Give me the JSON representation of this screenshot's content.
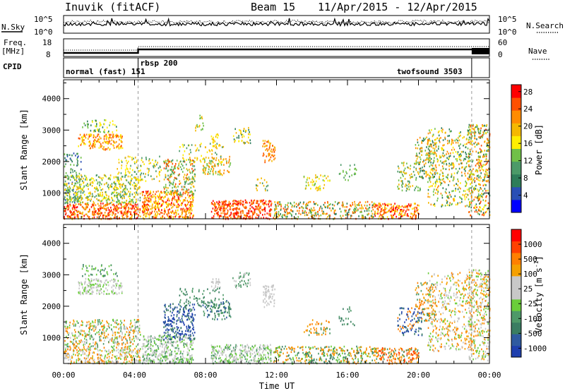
{
  "header": {
    "station": "Inuvik (fitACF)",
    "beam": "Beam 15",
    "date_range": "11/Apr/2015 - 12/Apr/2015"
  },
  "noise_panel": {
    "left_label": "N.Sky",
    "right_label": "N.Search",
    "tick_labels": [
      "10^5",
      "10^0"
    ],
    "right_line_style": "dotted"
  },
  "freq_panel": {
    "left_label_1": "Freq.",
    "left_label_2": "[MHz]",
    "left_ticks": [
      "18",
      "8"
    ],
    "right_label": "Nave",
    "right_ticks": [
      "60",
      "0"
    ],
    "right_line_style": "dotted"
  },
  "cpid": {
    "label": "CPID",
    "segments": [
      {
        "name": "normal (fast) 151",
        "start_h": 0,
        "end_h": 4.2
      },
      {
        "name": "rbsp 200",
        "start_h": 4.2,
        "end_h": 23.0
      },
      {
        "name": "twofsound 3503",
        "start_h": 23.0,
        "end_h": 24
      }
    ]
  },
  "chart_data": [
    {
      "type": "heatmap",
      "name": "power",
      "ylabel": "Slant Range [km]",
      "xlabel": "Time UT",
      "xlim_hours": [
        0,
        24
      ],
      "ylim_km": [
        180,
        4600
      ],
      "x_ticks": [
        "00:00",
        "04:00",
        "08:00",
        "12:00",
        "16:00",
        "20:00",
        "00:00"
      ],
      "y_ticks": [
        1000,
        2000,
        3000,
        4000
      ],
      "colorbar": {
        "label": "Power [dB]",
        "ticks": [
          "4",
          "8",
          "12",
          "16",
          "20",
          "24",
          "28"
        ],
        "colors": [
          "#0000ff",
          "#2a4fb5",
          "#2e7d59",
          "#4c9a68",
          "#70c048",
          "#ffee00",
          "#f5b800",
          "#ff8c00",
          "#ff5000",
          "#ff0000"
        ]
      },
      "scatter_regions": [
        {
          "t0": 0.0,
          "t1": 4.3,
          "r0": 200,
          "r1": 700,
          "levels": [
            8,
            9,
            7,
            6
          ],
          "density": 0.9
        },
        {
          "t0": 0.0,
          "t1": 1.0,
          "r0": 700,
          "r1": 2300,
          "levels": [
            2,
            3,
            1,
            4
          ],
          "density": 0.35
        },
        {
          "t0": 0.8,
          "t1": 3.3,
          "r0": 2400,
          "r1": 2900,
          "levels": [
            7,
            6,
            5,
            8
          ],
          "density": 0.7
        },
        {
          "t0": 1.0,
          "t1": 3.0,
          "r0": 2950,
          "r1": 3350,
          "levels": [
            4,
            5,
            2
          ],
          "density": 0.35
        },
        {
          "t0": 0.0,
          "t1": 4.3,
          "r0": 700,
          "r1": 1600,
          "levels": [
            3,
            4,
            5,
            6
          ],
          "density": 0.6
        },
        {
          "t0": 3.0,
          "t1": 5.5,
          "r0": 1400,
          "r1": 2200,
          "levels": [
            3,
            5,
            6
          ],
          "density": 0.3
        },
        {
          "t0": 4.4,
          "t1": 7.3,
          "r0": 200,
          "r1": 1100,
          "levels": [
            7,
            8,
            9,
            6,
            5
          ],
          "density": 0.85
        },
        {
          "t0": 5.6,
          "t1": 7.4,
          "r0": 950,
          "r1": 2100,
          "levels": [
            4,
            6,
            8,
            3
          ],
          "density": 0.55
        },
        {
          "t0": 7.8,
          "t1": 9.4,
          "r0": 1600,
          "r1": 2200,
          "levels": [
            4,
            6,
            7
          ],
          "density": 0.5
        },
        {
          "t0": 8.3,
          "t1": 8.8,
          "r0": 2500,
          "r1": 2900,
          "levels": [
            5,
            6
          ],
          "density": 0.6
        },
        {
          "t0": 7.4,
          "t1": 8.0,
          "r0": 3000,
          "r1": 3500,
          "levels": [
            4,
            6
          ],
          "density": 0.3
        },
        {
          "t0": 8.3,
          "t1": 11.7,
          "r0": 200,
          "r1": 800,
          "levels": [
            8,
            9,
            7
          ],
          "density": 0.9
        },
        {
          "t0": 9.5,
          "t1": 10.5,
          "r0": 2600,
          "r1": 3100,
          "levels": [
            5,
            6,
            2
          ],
          "density": 0.45
        },
        {
          "t0": 11.2,
          "t1": 11.9,
          "r0": 2000,
          "r1": 2700,
          "levels": [
            6,
            7,
            8
          ],
          "density": 0.6
        },
        {
          "t0": 10.8,
          "t1": 11.5,
          "r0": 1100,
          "r1": 1500,
          "levels": [
            3,
            6
          ],
          "density": 0.35
        },
        {
          "t0": 11.8,
          "t1": 17.5,
          "r0": 200,
          "r1": 750,
          "levels": [
            4,
            6,
            7,
            8,
            2
          ],
          "density": 0.55
        },
        {
          "t0": 13.5,
          "t1": 15.0,
          "r0": 1100,
          "r1": 1600,
          "levels": [
            4,
            5,
            6
          ],
          "density": 0.35
        },
        {
          "t0": 15.5,
          "t1": 16.5,
          "r0": 1400,
          "r1": 2000,
          "levels": [
            3,
            4
          ],
          "density": 0.2
        },
        {
          "t0": 17.5,
          "t1": 20.0,
          "r0": 200,
          "r1": 700,
          "levels": [
            7,
            8,
            9,
            5
          ],
          "density": 0.8
        },
        {
          "t0": 18.8,
          "t1": 20.2,
          "r0": 1100,
          "r1": 2000,
          "levels": [
            3,
            4,
            6
          ],
          "density": 0.35
        },
        {
          "t0": 19.8,
          "t1": 21.0,
          "r0": 1500,
          "r1": 2800,
          "levels": [
            4,
            6,
            7,
            2
          ],
          "density": 0.45
        },
        {
          "t0": 20.5,
          "t1": 23.0,
          "r0": 600,
          "r1": 3100,
          "levels": [
            2,
            4,
            5,
            6,
            7
          ],
          "density": 0.35
        },
        {
          "t0": 22.8,
          "t1": 24.0,
          "r0": 300,
          "r1": 3200,
          "levels": [
            2,
            4,
            5,
            6,
            7,
            8
          ],
          "density": 0.55
        },
        {
          "t0": 6.5,
          "t1": 9.0,
          "r0": 2000,
          "r1": 2600,
          "levels": [
            3,
            5,
            6
          ],
          "density": 0.25
        }
      ]
    },
    {
      "type": "heatmap",
      "name": "velocity",
      "ylabel": "Slant Range [km]",
      "xlabel": "Time UT",
      "xlim_hours": [
        0,
        24
      ],
      "ylim_km": [
        180,
        4600
      ],
      "x_ticks": [
        "00:00",
        "04:00",
        "08:00",
        "12:00",
        "16:00",
        "20:00",
        "00:00"
      ],
      "y_ticks": [
        1000,
        2000,
        3000,
        4000
      ],
      "colorbar": {
        "label": "Velocity [m s-1]",
        "label_main": "Velocity",
        "label_unit": "[m s",
        "label_exp": "-1",
        "label_close": "]",
        "ticks": [
          "1000",
          "500",
          "100",
          "25",
          "-25",
          "-100",
          "-500",
          "-1000"
        ],
        "colors": [
          "#1f3fae",
          "#2f5aa0",
          "#3a7d62",
          "#4e9968",
          "#6acd3a",
          "#c8c8c8",
          "#c8c8c8",
          "#f5a000",
          "#ff7f00",
          "#ff4000",
          "#ff0000"
        ]
      },
      "scatter_regions": [
        {
          "t0": 0.0,
          "t1": 4.3,
          "r0": 200,
          "r1": 700,
          "levels": [
            5,
            6,
            7,
            8,
            4
          ],
          "density": 0.8
        },
        {
          "t0": 0.8,
          "t1": 3.3,
          "r0": 2400,
          "r1": 2900,
          "levels": [
            5,
            6,
            4
          ],
          "density": 0.7
        },
        {
          "t0": 0.0,
          "t1": 4.3,
          "r0": 700,
          "r1": 1600,
          "levels": [
            3,
            4,
            6,
            7,
            8
          ],
          "density": 0.55
        },
        {
          "t0": 1.0,
          "t1": 3.0,
          "r0": 2950,
          "r1": 3350,
          "levels": [
            4,
            2,
            3
          ],
          "density": 0.3
        },
        {
          "t0": 4.4,
          "t1": 7.3,
          "r0": 200,
          "r1": 1100,
          "levels": [
            5,
            6,
            3,
            4
          ],
          "density": 0.8
        },
        {
          "t0": 5.6,
          "t1": 7.4,
          "r0": 950,
          "r1": 2100,
          "levels": [
            0,
            1,
            2
          ],
          "density": 0.6
        },
        {
          "t0": 7.8,
          "t1": 9.4,
          "r0": 1600,
          "r1": 2200,
          "levels": [
            2,
            3,
            1
          ],
          "density": 0.5
        },
        {
          "t0": 8.3,
          "t1": 8.8,
          "r0": 2500,
          "r1": 2900,
          "levels": [
            5,
            6
          ],
          "density": 0.6
        },
        {
          "t0": 8.3,
          "t1": 11.7,
          "r0": 200,
          "r1": 800,
          "levels": [
            5,
            6,
            3,
            4
          ],
          "density": 0.85
        },
        {
          "t0": 9.5,
          "t1": 10.5,
          "r0": 2600,
          "r1": 3100,
          "levels": [
            3,
            5
          ],
          "density": 0.45
        },
        {
          "t0": 11.2,
          "t1": 11.9,
          "r0": 2000,
          "r1": 2700,
          "levels": [
            5,
            6
          ],
          "density": 0.6
        },
        {
          "t0": 11.8,
          "t1": 17.5,
          "r0": 200,
          "r1": 750,
          "levels": [
            3,
            4,
            7,
            8,
            2
          ],
          "density": 0.55
        },
        {
          "t0": 13.5,
          "t1": 15.0,
          "r0": 1100,
          "r1": 1600,
          "levels": [
            7,
            8,
            3
          ],
          "density": 0.35
        },
        {
          "t0": 15.5,
          "t1": 16.5,
          "r0": 1400,
          "r1": 2000,
          "levels": [
            3,
            2
          ],
          "density": 0.2
        },
        {
          "t0": 17.5,
          "t1": 20.0,
          "r0": 200,
          "r1": 700,
          "levels": [
            7,
            8,
            9,
            3
          ],
          "density": 0.75
        },
        {
          "t0": 18.8,
          "t1": 20.2,
          "r0": 1100,
          "r1": 2000,
          "levels": [
            0,
            1,
            2,
            8
          ],
          "density": 0.4
        },
        {
          "t0": 19.8,
          "t1": 21.0,
          "r0": 1500,
          "r1": 2800,
          "levels": [
            7,
            8,
            3
          ],
          "density": 0.4
        },
        {
          "t0": 20.5,
          "t1": 23.0,
          "r0": 600,
          "r1": 3100,
          "levels": [
            5,
            6,
            7,
            8,
            4
          ],
          "density": 0.35
        },
        {
          "t0": 22.8,
          "t1": 24.0,
          "r0": 300,
          "r1": 3200,
          "levels": [
            5,
            6,
            7,
            8,
            4
          ],
          "density": 0.55
        },
        {
          "t0": 6.5,
          "t1": 9.0,
          "r0": 2000,
          "r1": 2600,
          "levels": [
            2,
            3
          ],
          "density": 0.25
        }
      ]
    }
  ]
}
